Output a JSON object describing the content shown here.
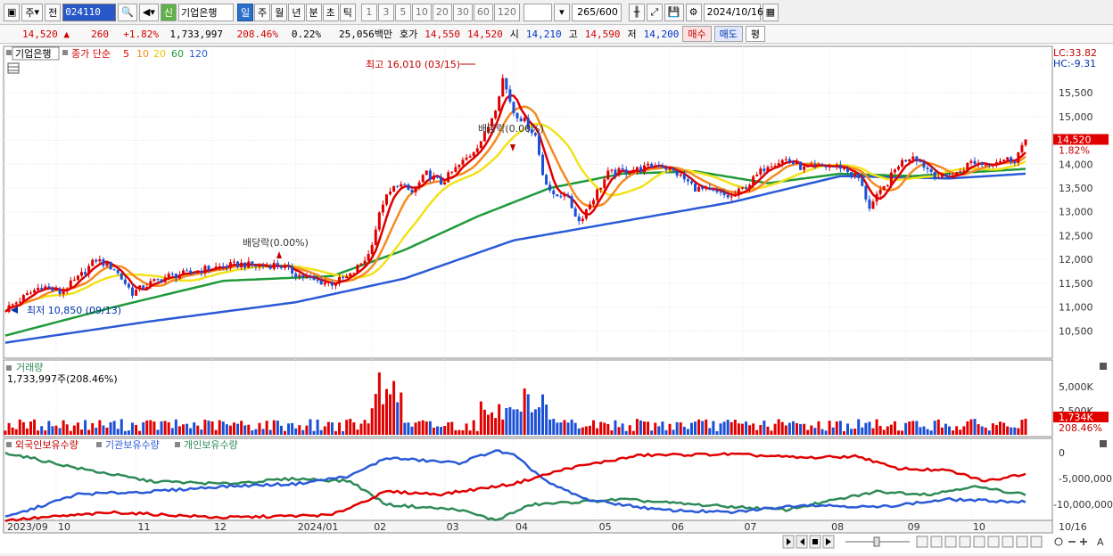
{
  "toolbar": {
    "period_type": "주",
    "prev": "전",
    "stock_code": "024110",
    "credit_badge": "신",
    "stock_name": "기업은행",
    "periods": [
      "일",
      "주",
      "월",
      "년",
      "분",
      "초",
      "틱"
    ],
    "active_period": "일",
    "intervals": [
      "1",
      "3",
      "5",
      "10",
      "20",
      "30",
      "60",
      "120"
    ],
    "count": "265",
    "count_total": "/600",
    "date": "2024/10/16"
  },
  "quote": {
    "price": "14,520",
    "arrow": "▲",
    "change": "260",
    "change_pct": "+1.82%",
    "volume": "1,733,997",
    "volume_ratio": "208.46%",
    "turnover": "0.22%",
    "amount": "25,056백만",
    "ask_label": "호가",
    "ask": "14,550",
    "bid": "14,520",
    "open_label": "시",
    "open": "14,210",
    "high_label": "고",
    "high": "14,590",
    "low_label": "저",
    "low": "14,200",
    "buy_label": "매수",
    "sell_label": "매도",
    "eval_label": "평"
  },
  "legend": {
    "name": "기업은행",
    "series_label": "종가 단순",
    "ma": [
      "5",
      "10",
      "20",
      "60",
      "120"
    ]
  },
  "annotations": {
    "high": "최고 16,010 (03/15)",
    "low": "최저 10,850 (09/13)",
    "dividend1": "배당락(0.00%)",
    "dividend2": "배당락(0.00%)",
    "lc": "LC:33.82",
    "hc": "HC:-9.31",
    "last_price": "14,520",
    "last_pct": "1.82%"
  },
  "volume_panel": {
    "title": "거래량",
    "value": "1,733,997주(208.46%)",
    "last_label": "1,734K",
    "last_pct": "208.46%",
    "ticks": [
      "5,000K",
      "2,500K"
    ]
  },
  "holdings_panel": {
    "series": [
      "외국인보유수량",
      "기관보유수량",
      "개인보유수량"
    ],
    "ticks": [
      "0",
      "-5,000,000",
      "-10,000,000"
    ]
  },
  "xaxis": {
    "labels": [
      "2023/09",
      "10",
      "11",
      "12",
      "2024/01",
      "02",
      "03",
      "04",
      "05",
      "06",
      "07",
      "08",
      "09",
      "10"
    ],
    "right_label": "10/16"
  },
  "chart_data": {
    "type": "line",
    "title": "기업은행",
    "ylim": [
      10000,
      16400
    ],
    "y_ticks": [
      10500,
      11000,
      11500,
      12000,
      12500,
      13000,
      13500,
      14000,
      14500,
      15000,
      15500
    ],
    "close": [
      {
        "t": 0,
        "v": 10950
      },
      {
        "t": 5,
        "v": 11200
      },
      {
        "t": 10,
        "v": 11450
      },
      {
        "t": 15,
        "v": 11300
      },
      {
        "t": 20,
        "v": 11600
      },
      {
        "t": 25,
        "v": 12000
      },
      {
        "t": 30,
        "v": 11800
      },
      {
        "t": 35,
        "v": 11300
      },
      {
        "t": 40,
        "v": 11500
      },
      {
        "t": 45,
        "v": 11650
      },
      {
        "t": 50,
        "v": 11700
      },
      {
        "t": 55,
        "v": 11800
      },
      {
        "t": 60,
        "v": 11850
      },
      {
        "t": 65,
        "v": 11900
      },
      {
        "t": 70,
        "v": 11850
      },
      {
        "t": 75,
        "v": 11900
      },
      {
        "t": 80,
        "v": 11700
      },
      {
        "t": 85,
        "v": 11550
      },
      {
        "t": 90,
        "v": 11500
      },
      {
        "t": 95,
        "v": 11650
      },
      {
        "t": 100,
        "v": 12100
      },
      {
        "t": 104,
        "v": 13200
      },
      {
        "t": 108,
        "v": 13600
      },
      {
        "t": 112,
        "v": 13400
      },
      {
        "t": 116,
        "v": 13800
      },
      {
        "t": 120,
        "v": 13600
      },
      {
        "t": 124,
        "v": 13900
      },
      {
        "t": 128,
        "v": 14200
      },
      {
        "t": 132,
        "v": 14600
      },
      {
        "t": 135,
        "v": 15200
      },
      {
        "t": 137,
        "v": 15800
      },
      {
        "t": 140,
        "v": 15100
      },
      {
        "t": 143,
        "v": 14900
      },
      {
        "t": 146,
        "v": 14600
      },
      {
        "t": 148,
        "v": 13800
      },
      {
        "t": 151,
        "v": 13300
      },
      {
        "t": 154,
        "v": 13400
      },
      {
        "t": 158,
        "v": 12800
      },
      {
        "t": 162,
        "v": 13300
      },
      {
        "t": 166,
        "v": 13800
      },
      {
        "t": 170,
        "v": 13850
      },
      {
        "t": 175,
        "v": 13900
      },
      {
        "t": 180,
        "v": 14000
      },
      {
        "t": 185,
        "v": 13800
      },
      {
        "t": 190,
        "v": 13500
      },
      {
        "t": 195,
        "v": 13400
      },
      {
        "t": 200,
        "v": 13300
      },
      {
        "t": 205,
        "v": 13600
      },
      {
        "t": 210,
        "v": 14000
      },
      {
        "t": 215,
        "v": 14100
      },
      {
        "t": 220,
        "v": 13900
      },
      {
        "t": 225,
        "v": 13950
      },
      {
        "t": 230,
        "v": 13950
      },
      {
        "t": 235,
        "v": 13700
      },
      {
        "t": 238,
        "v": 13100
      },
      {
        "t": 242,
        "v": 13500
      },
      {
        "t": 246,
        "v": 14000
      },
      {
        "t": 250,
        "v": 14200
      },
      {
        "t": 254,
        "v": 13900
      },
      {
        "t": 258,
        "v": 13700
      },
      {
        "t": 262,
        "v": 13800
      },
      {
        "t": 266,
        "v": 14050
      },
      {
        "t": 270,
        "v": 14000
      },
      {
        "t": 274,
        "v": 14100
      },
      {
        "t": 278,
        "v": 14100
      },
      {
        "t": 281,
        "v": 14520
      }
    ],
    "ma60": [
      {
        "t": 0,
        "v": 10400
      },
      {
        "t": 30,
        "v": 11000
      },
      {
        "t": 60,
        "v": 11550
      },
      {
        "t": 90,
        "v": 11650
      },
      {
        "t": 110,
        "v": 12200
      },
      {
        "t": 130,
        "v": 12900
      },
      {
        "t": 150,
        "v": 13500
      },
      {
        "t": 170,
        "v": 13800
      },
      {
        "t": 190,
        "v": 13850
      },
      {
        "t": 210,
        "v": 13600
      },
      {
        "t": 230,
        "v": 13800
      },
      {
        "t": 250,
        "v": 13750
      },
      {
        "t": 270,
        "v": 13850
      },
      {
        "t": 281,
        "v": 13900
      }
    ],
    "ma120": [
      {
        "t": 0,
        "v": 10250
      },
      {
        "t": 40,
        "v": 10700
      },
      {
        "t": 80,
        "v": 11100
      },
      {
        "t": 110,
        "v": 11600
      },
      {
        "t": 140,
        "v": 12400
      },
      {
        "t": 170,
        "v": 12800
      },
      {
        "t": 200,
        "v": 13200
      },
      {
        "t": 230,
        "v": 13750
      },
      {
        "t": 260,
        "v": 13700
      },
      {
        "t": 281,
        "v": 13800
      }
    ]
  },
  "colors": {
    "ma5": "#e00000",
    "ma10": "#f58a1f",
    "ma20": "#f2e21a",
    "ma60": "#1f9a3a",
    "ma120": "#2a5ad6",
    "foreign": "#e00000",
    "institution": "#2a5ad6",
    "individual": "#2e8b57"
  }
}
